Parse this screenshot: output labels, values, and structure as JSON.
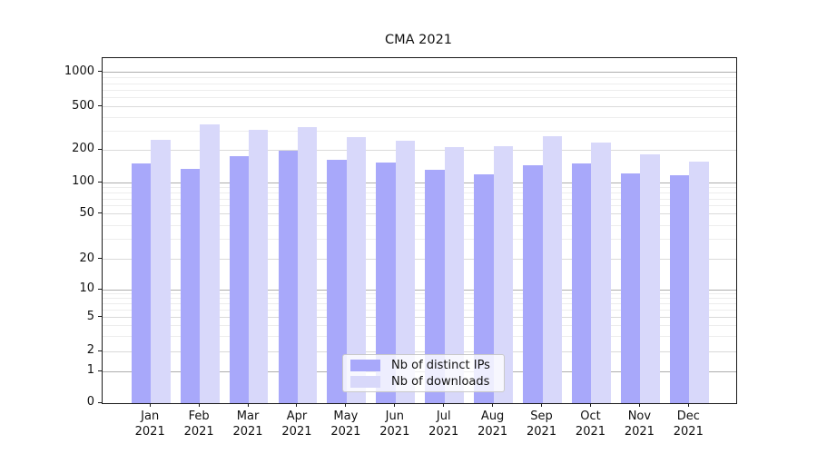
{
  "title": "CMA 2021",
  "chart_data": {
    "type": "bar",
    "title": "CMA 2021",
    "xlabel": "",
    "ylabel": "",
    "categories": [
      "Jan",
      "Feb",
      "Mar",
      "Apr",
      "May",
      "Jun",
      "Jul",
      "Aug",
      "Sep",
      "Oct",
      "Nov",
      "Dec"
    ],
    "category_year": "2021",
    "series": [
      {
        "name": "Nb of distinct IPs",
        "color": "#a8a8fa",
        "values": [
          150,
          134,
          175,
          199,
          162,
          154,
          132,
          121,
          146,
          152,
          122,
          118
        ]
      },
      {
        "name": "Nb of downloads",
        "color": "#d8d8fa",
        "values": [
          251,
          345,
          310,
          330,
          265,
          247,
          215,
          217,
          268,
          237,
          184,
          157
        ]
      }
    ],
    "yscale": "log-with-zero",
    "yticks": [
      0,
      1,
      2,
      5,
      10,
      20,
      50,
      100,
      200,
      500,
      1000
    ],
    "ylim": [
      0,
      1350
    ],
    "grid": "on",
    "legend_position": "bottom-center-inside"
  }
}
